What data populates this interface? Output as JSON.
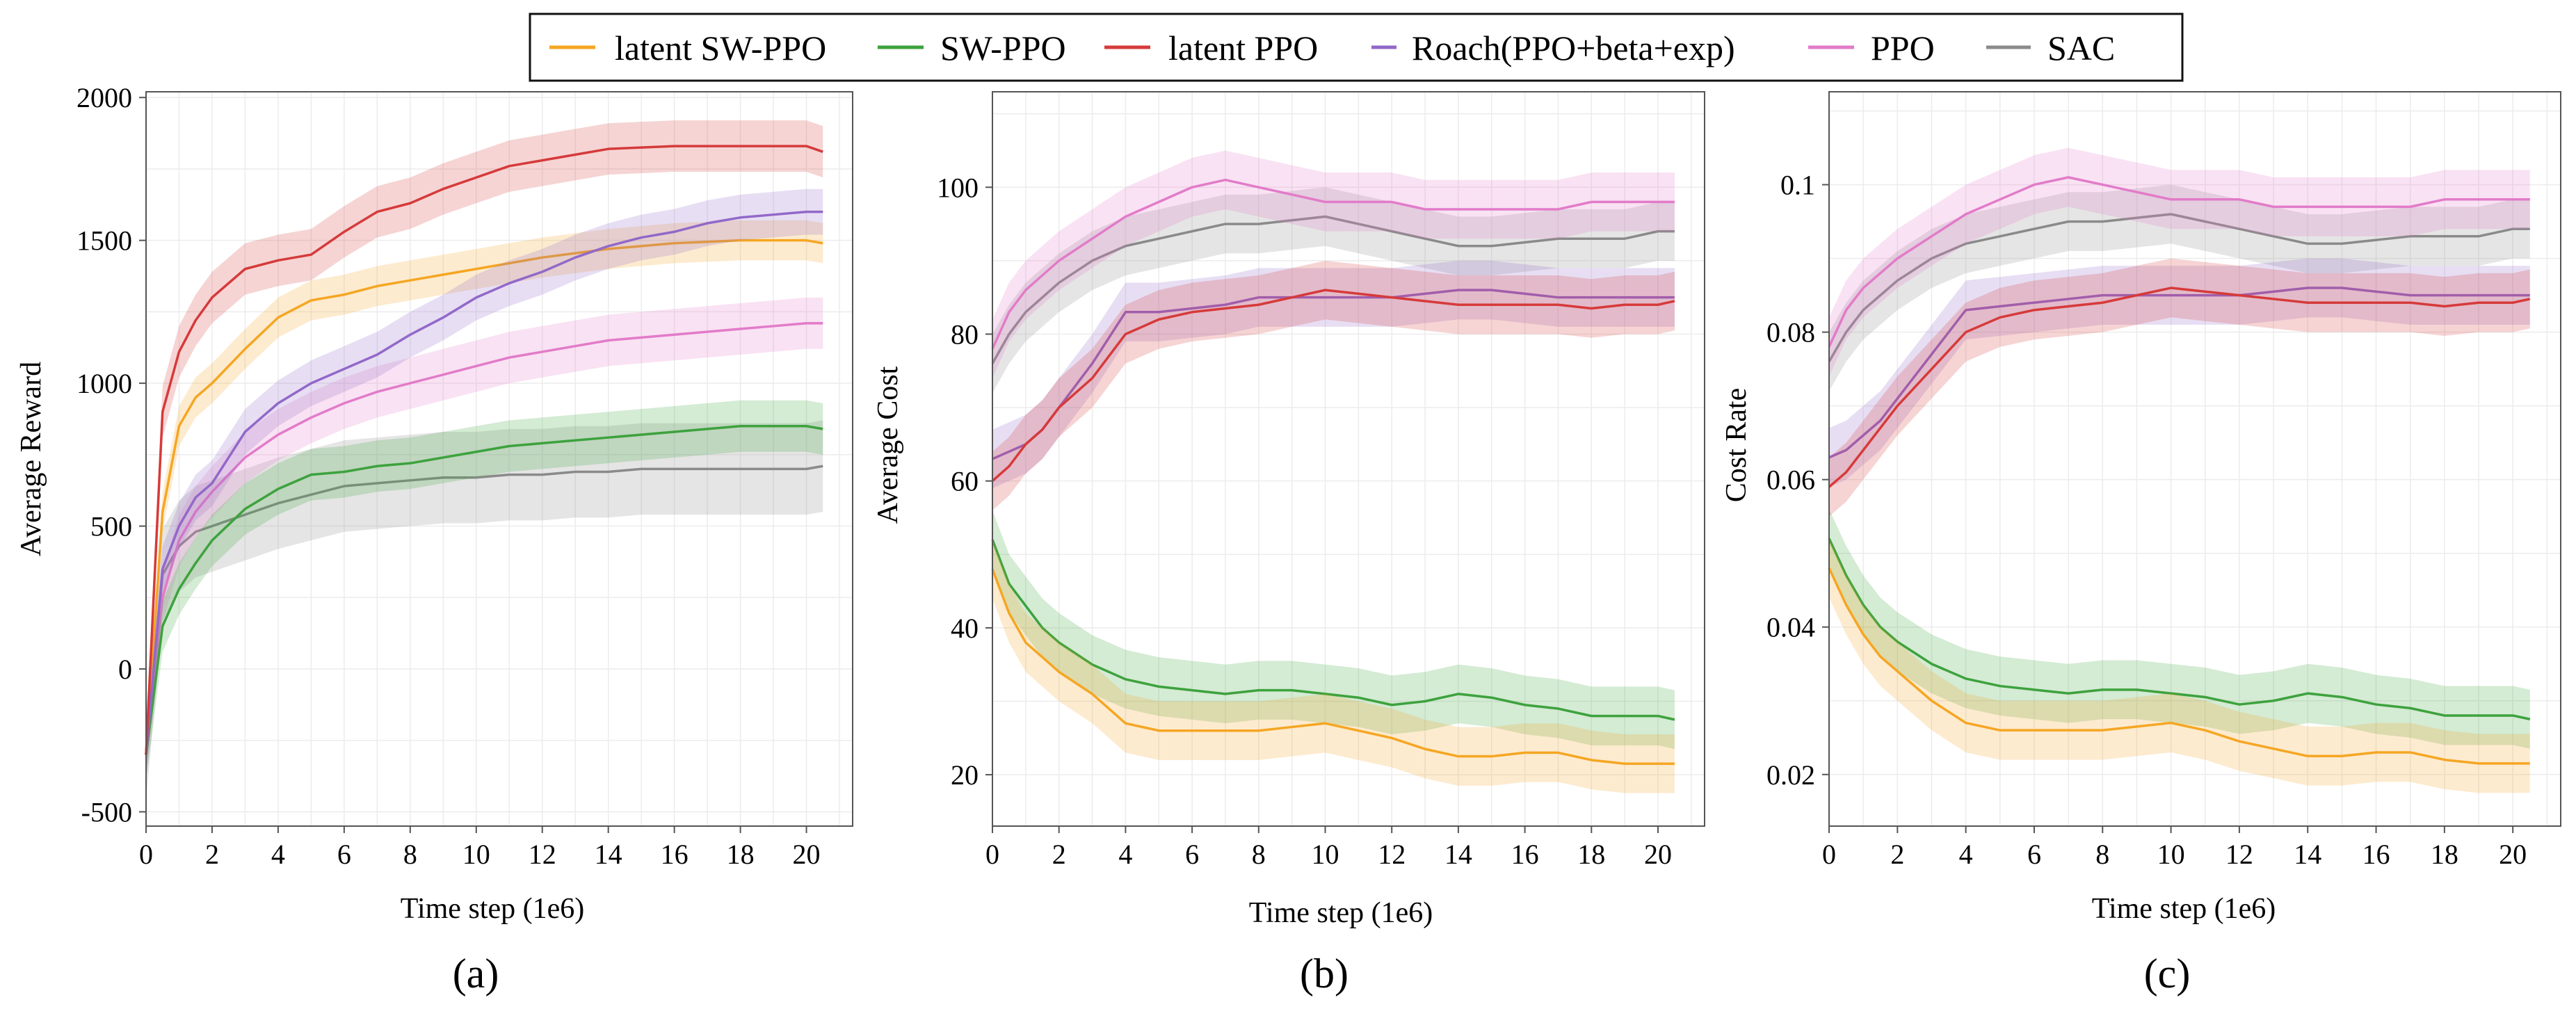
{
  "legend": [
    {
      "name": "latent SW-PPO",
      "color": "#F5A623"
    },
    {
      "name": "SW-PPO",
      "color": "#3DA23D"
    },
    {
      "name": "latent PPO",
      "color": "#D63A3A"
    },
    {
      "name": "Roach(PPO+beta+exp)",
      "color": "#9268C9"
    },
    {
      "name": "PPO",
      "color": "#E27BC9"
    },
    {
      "name": "SAC",
      "color": "#8A8A8A"
    }
  ],
  "chart_data": [
    {
      "type": "line",
      "caption": "(a)",
      "xlabel": "Time step (1e6)",
      "ylabel": "Average Reward",
      "xlim": [
        0,
        21.4
      ],
      "ylim": [
        -550,
        2020
      ],
      "xticks": [
        0,
        2,
        4,
        6,
        8,
        10,
        12,
        14,
        16,
        18,
        20
      ],
      "xtick_labels": [
        "0",
        "2",
        "4",
        "6",
        "8",
        "10",
        "12",
        "14",
        "16",
        "18",
        "20"
      ],
      "yticks": [
        -500,
        0,
        500,
        1000,
        1500,
        2000
      ],
      "ytick_labels": [
        "-500",
        "0",
        "500",
        "1000",
        "1500",
        "2000"
      ],
      "x": [
        0,
        0.5,
        1,
        1.5,
        2,
        3,
        4,
        5,
        6,
        7,
        8,
        9,
        10,
        11,
        12,
        13,
        14,
        15,
        16,
        17,
        18,
        19,
        20,
        20.5
      ],
      "series": [
        {
          "name": "latent SW-PPO",
          "band": 70,
          "values": [
            -300,
            550,
            850,
            950,
            1000,
            1120,
            1230,
            1290,
            1310,
            1340,
            1360,
            1380,
            1400,
            1420,
            1440,
            1455,
            1470,
            1480,
            1490,
            1495,
            1500,
            1500,
            1500,
            1490
          ]
        },
        {
          "name": "SW-PPO",
          "band": 90,
          "values": [
            -300,
            150,
            280,
            370,
            450,
            560,
            630,
            680,
            690,
            710,
            720,
            740,
            760,
            780,
            790,
            800,
            810,
            820,
            830,
            840,
            850,
            850,
            850,
            840
          ]
        },
        {
          "name": "latent PPO",
          "band": 90,
          "values": [
            -300,
            900,
            1110,
            1220,
            1300,
            1400,
            1430,
            1450,
            1530,
            1600,
            1630,
            1680,
            1720,
            1760,
            1780,
            1800,
            1820,
            1825,
            1830,
            1830,
            1830,
            1830,
            1830,
            1810
          ]
        },
        {
          "name": "Roach(PPO+beta+exp)",
          "band": 80,
          "values": [
            -300,
            350,
            500,
            600,
            650,
            830,
            930,
            1000,
            1050,
            1100,
            1170,
            1230,
            1300,
            1350,
            1390,
            1440,
            1480,
            1510,
            1530,
            1560,
            1580,
            1590,
            1600,
            1600
          ]
        },
        {
          "name": "PPO",
          "band": 90,
          "values": [
            -300,
            250,
            450,
            550,
            620,
            740,
            820,
            880,
            930,
            970,
            1000,
            1030,
            1060,
            1090,
            1110,
            1130,
            1150,
            1160,
            1170,
            1180,
            1190,
            1200,
            1210,
            1210
          ]
        },
        {
          "name": "SAC",
          "band": 160,
          "values": [
            -300,
            330,
            430,
            480,
            500,
            540,
            580,
            610,
            640,
            650,
            660,
            670,
            670,
            680,
            680,
            690,
            690,
            700,
            700,
            700,
            700,
            700,
            700,
            710
          ]
        }
      ]
    },
    {
      "type": "line",
      "caption": "(b)",
      "xlabel": "Time step (1e6)",
      "ylabel": "Average Cost",
      "xlim": [
        0,
        21.4
      ],
      "ylim": [
        13,
        113
      ],
      "xticks": [
        0,
        2,
        4,
        6,
        8,
        10,
        12,
        14,
        16,
        18,
        20
      ],
      "xtick_labels": [
        "0",
        "2",
        "4",
        "6",
        "8",
        "10",
        "12",
        "14",
        "16",
        "18",
        "20"
      ],
      "yticks": [
        20,
        40,
        60,
        80,
        100
      ],
      "ytick_labels": [
        "20",
        "40",
        "60",
        "80",
        "100"
      ],
      "x": [
        0,
        0.5,
        1,
        1.5,
        2,
        3,
        4,
        5,
        6,
        7,
        8,
        9,
        10,
        11,
        12,
        13,
        14,
        15,
        16,
        17,
        18,
        19,
        20,
        20.5
      ],
      "series": [
        {
          "name": "latent SW-PPO",
          "band": 4,
          "values": [
            48,
            42,
            38,
            36,
            34,
            31,
            27,
            26,
            26,
            26,
            26,
            26.5,
            27,
            26,
            25,
            23.5,
            22.5,
            22.5,
            23,
            23,
            22,
            21.5,
            21.5,
            21.5
          ]
        },
        {
          "name": "SW-PPO",
          "band": 4,
          "values": [
            52,
            46,
            43,
            40,
            38,
            35,
            33,
            32,
            31.5,
            31,
            31.5,
            31.5,
            31,
            30.5,
            29.5,
            30,
            31,
            30.5,
            29.5,
            29,
            28,
            28,
            28,
            27.5
          ]
        },
        {
          "name": "latent PPO",
          "band": 4,
          "values": [
            60,
            62,
            65,
            67,
            70,
            74,
            80,
            82,
            83,
            83.5,
            84,
            85,
            86,
            85.5,
            85,
            84.5,
            84,
            84,
            84,
            84,
            83.5,
            84,
            84,
            84.5
          ]
        },
        {
          "name": "Roach(PPO+beta+exp)",
          "band": 4,
          "values": [
            63,
            64,
            65,
            67,
            70,
            76,
            83,
            83,
            83.5,
            84,
            85,
            85,
            85,
            85,
            85,
            85.5,
            86,
            86,
            85.5,
            85,
            85,
            85,
            85,
            85
          ]
        },
        {
          "name": "PPO",
          "band": 4,
          "values": [
            78,
            83,
            86,
            88,
            90,
            93,
            96,
            98,
            100,
            101,
            100,
            99,
            98,
            98,
            98,
            97,
            97,
            97,
            97,
            97,
            98,
            98,
            98,
            98
          ]
        },
        {
          "name": "SAC",
          "band": 4,
          "values": [
            76,
            80,
            83,
            85,
            87,
            90,
            92,
            93,
            94,
            95,
            95,
            95.5,
            96,
            95,
            94,
            93,
            92,
            92,
            92.5,
            93,
            93,
            93,
            94,
            94
          ]
        }
      ]
    },
    {
      "type": "line",
      "caption": "(c)",
      "xlabel": "Time step (1e6)",
      "ylabel": "Cost Rate",
      "xlim": [
        0,
        21.4
      ],
      "ylim": [
        0.013,
        0.1126
      ],
      "xticks": [
        0,
        2,
        4,
        6,
        8,
        10,
        12,
        14,
        16,
        18,
        20
      ],
      "xtick_labels": [
        "0",
        "2",
        "4",
        "6",
        "8",
        "10",
        "12",
        "14",
        "16",
        "18",
        "20"
      ],
      "yticks": [
        0.02,
        0.04,
        0.06,
        0.08,
        0.1
      ],
      "ytick_labels": [
        "0.02",
        "0.04",
        "0.06",
        "0.08",
        "0.1"
      ],
      "x": [
        0,
        0.5,
        1,
        1.5,
        2,
        3,
        4,
        5,
        6,
        7,
        8,
        9,
        10,
        11,
        12,
        13,
        14,
        15,
        16,
        17,
        18,
        19,
        20,
        20.5
      ],
      "series": [
        {
          "name": "latent SW-PPO",
          "band": 0.004,
          "values": [
            0.048,
            0.043,
            0.039,
            0.036,
            0.034,
            0.03,
            0.027,
            0.026,
            0.026,
            0.026,
            0.026,
            0.0265,
            0.027,
            0.026,
            0.0245,
            0.0235,
            0.0225,
            0.0225,
            0.023,
            0.023,
            0.022,
            0.0215,
            0.0215,
            0.0215
          ]
        },
        {
          "name": "SW-PPO",
          "band": 0.004,
          "values": [
            0.052,
            0.047,
            0.043,
            0.04,
            0.038,
            0.035,
            0.033,
            0.032,
            0.0315,
            0.031,
            0.0315,
            0.0315,
            0.031,
            0.0305,
            0.0295,
            0.03,
            0.031,
            0.0305,
            0.0295,
            0.029,
            0.028,
            0.028,
            0.028,
            0.0275
          ]
        },
        {
          "name": "latent PPO",
          "band": 0.004,
          "values": [
            0.059,
            0.061,
            0.064,
            0.067,
            0.07,
            0.075,
            0.08,
            0.082,
            0.083,
            0.0835,
            0.084,
            0.085,
            0.086,
            0.0855,
            0.085,
            0.0845,
            0.084,
            0.084,
            0.084,
            0.084,
            0.0835,
            0.084,
            0.084,
            0.0845
          ]
        },
        {
          "name": "Roach(PPO+beta+exp)",
          "band": 0.004,
          "values": [
            0.063,
            0.064,
            0.066,
            0.068,
            0.071,
            0.077,
            0.083,
            0.0835,
            0.084,
            0.0845,
            0.085,
            0.085,
            0.085,
            0.085,
            0.085,
            0.0855,
            0.086,
            0.086,
            0.0855,
            0.085,
            0.085,
            0.085,
            0.085,
            0.085
          ]
        },
        {
          "name": "PPO",
          "band": 0.004,
          "values": [
            0.078,
            0.083,
            0.086,
            0.088,
            0.09,
            0.093,
            0.096,
            0.098,
            0.1,
            0.101,
            0.1,
            0.099,
            0.098,
            0.098,
            0.098,
            0.097,
            0.097,
            0.097,
            0.097,
            0.097,
            0.098,
            0.098,
            0.098,
            0.098
          ]
        },
        {
          "name": "SAC",
          "band": 0.004,
          "values": [
            0.076,
            0.08,
            0.083,
            0.085,
            0.087,
            0.09,
            0.092,
            0.093,
            0.094,
            0.095,
            0.095,
            0.0955,
            0.096,
            0.095,
            0.094,
            0.093,
            0.092,
            0.092,
            0.0925,
            0.093,
            0.093,
            0.093,
            0.094,
            0.094
          ]
        }
      ]
    }
  ]
}
